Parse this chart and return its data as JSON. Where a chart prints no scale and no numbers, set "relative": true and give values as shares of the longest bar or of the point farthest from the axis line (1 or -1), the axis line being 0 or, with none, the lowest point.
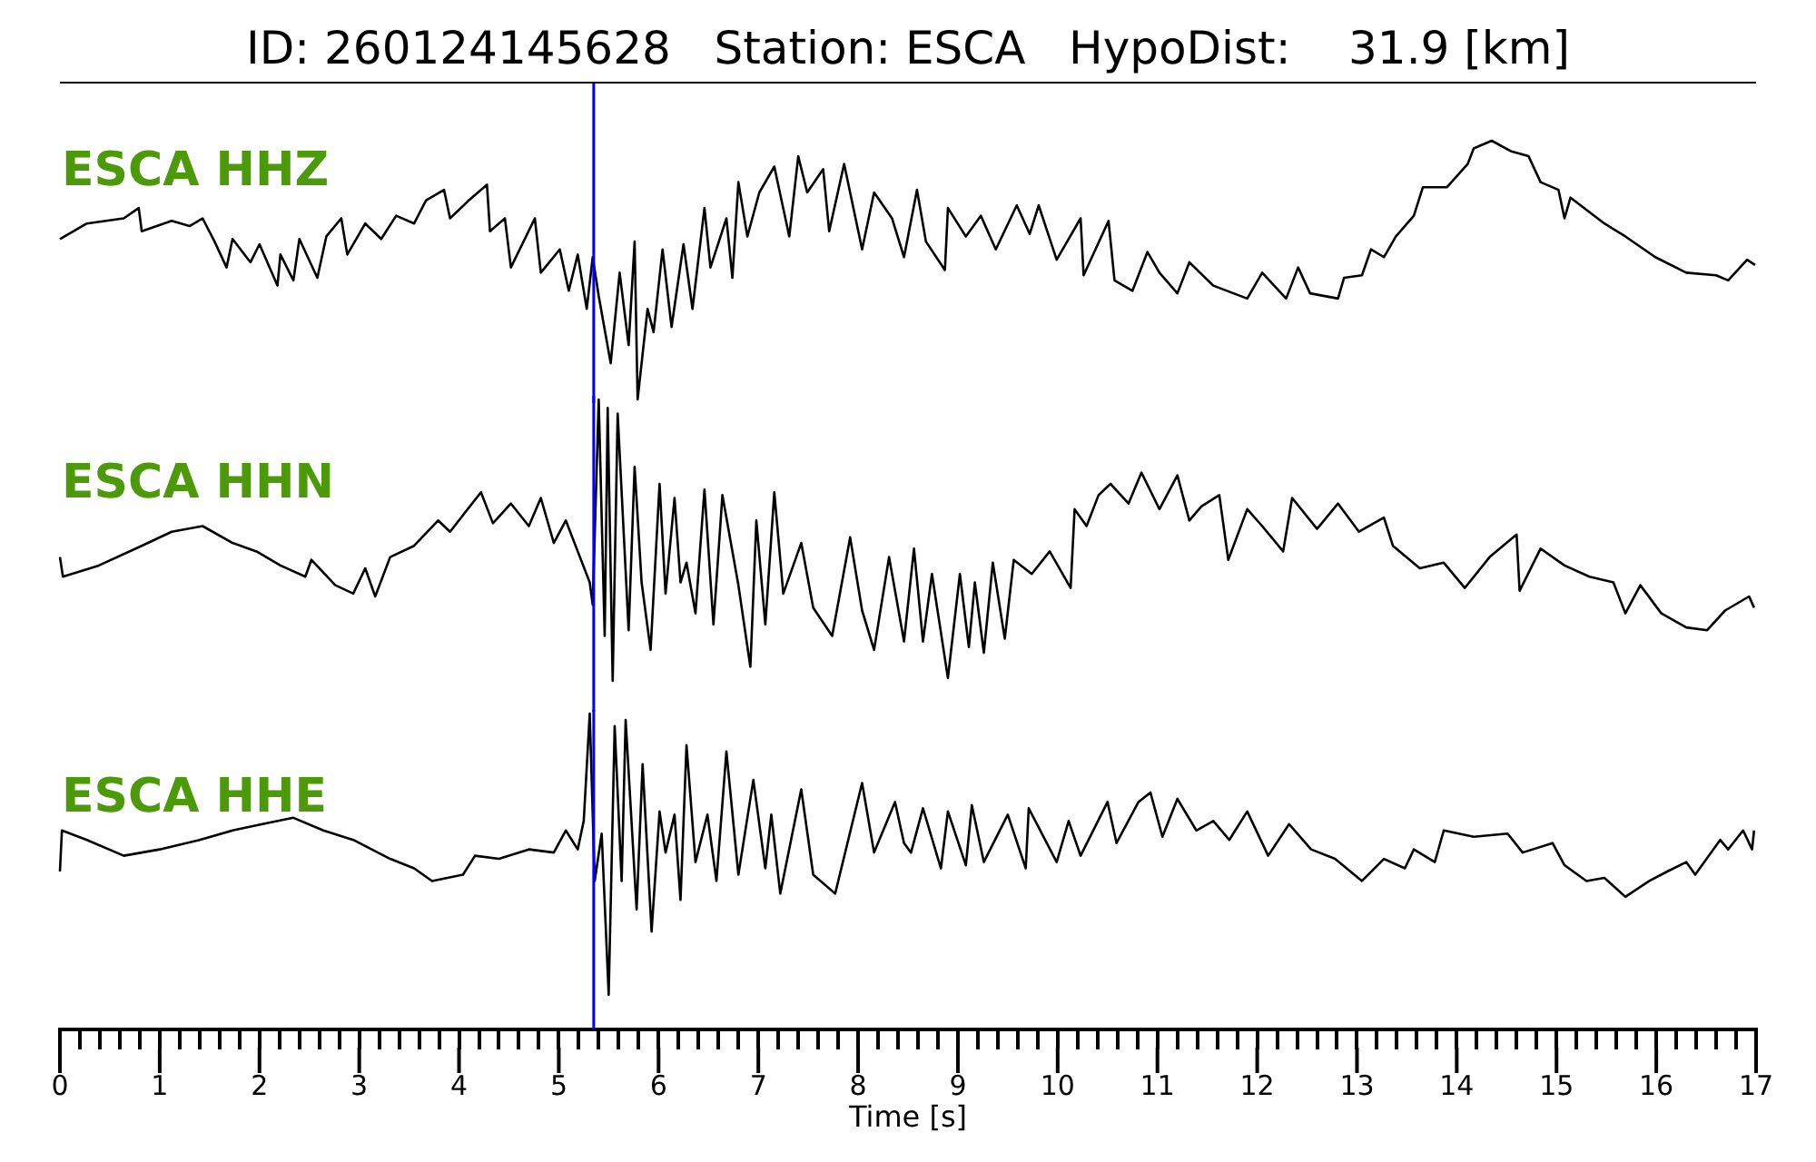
{
  "chart_data": [
    {
      "type": "line",
      "title": "ID: 260124145628   Station: ESCA   HypoDist:    31.9 [km]",
      "relative": true,
      "tick_labels": false,
      "xlim": [
        0,
        17
      ],
      "ref_lines": [
        {
          "axis": "x",
          "value": 5.35,
          "color": "#0000ff"
        }
      ],
      "x": [
        0,
        0.27,
        0.64,
        0.79,
        0.82,
        1.12,
        1.3,
        1.43,
        1.55,
        1.67,
        1.73,
        1.91,
        2.0,
        2.18,
        2.21,
        2.34,
        2.4,
        2.58,
        2.67,
        2.82,
        2.88,
        3.06,
        3.22,
        3.37,
        3.55,
        3.67,
        3.85,
        3.91,
        4.1,
        4.28,
        4.31,
        4.46,
        4.52,
        4.76,
        4.82,
        5.01,
        5.1,
        5.19,
        5.28,
        5.34,
        5.4,
        5.52,
        5.61,
        5.7,
        5.76,
        5.79,
        5.89,
        5.95,
        6.04,
        6.13,
        6.25,
        6.34,
        6.46,
        6.52,
        6.68,
        6.74,
        6.8,
        6.89,
        7.01,
        7.16,
        7.31,
        7.4,
        7.49,
        7.65,
        7.71,
        7.86,
        8.04,
        8.16,
        8.34,
        8.46,
        8.59,
        8.68,
        8.87,
        8.9,
        9.08,
        9.23,
        9.38,
        9.59,
        9.72,
        9.81,
        9.99,
        10.23,
        10.26,
        10.51,
        10.57,
        10.75,
        10.9,
        11.02,
        11.2,
        11.32,
        11.56,
        11.9,
        12.05,
        12.29,
        12.41,
        12.53,
        12.81,
        12.87,
        13.05,
        13.14,
        13.27,
        13.39,
        13.57,
        13.66,
        13.9,
        14.11,
        14.17,
        14.35,
        14.54,
        14.72,
        14.84,
        15.02,
        15.08,
        15.14,
        15.48,
        15.69,
        15.99,
        16.3,
        16.6,
        16.72,
        16.91,
        16.99
      ],
      "series": [
        {
          "name": "ESCA HHZ",
          "color": "#000000",
          "values": [
            0.62,
            0.68,
            0.7,
            0.74,
            0.65,
            0.69,
            0.67,
            0.7,
            0.61,
            0.51,
            0.62,
            0.53,
            0.6,
            0.44,
            0.56,
            0.46,
            0.62,
            0.47,
            0.63,
            0.7,
            0.56,
            0.68,
            0.62,
            0.71,
            0.68,
            0.77,
            0.81,
            0.7,
            0.77,
            0.83,
            0.65,
            0.7,
            0.51,
            0.7,
            0.49,
            0.58,
            0.42,
            0.56,
            0.35,
            0.55,
            0.4,
            0.14,
            0.49,
            0.21,
            0.61,
            0,
            0.35,
            0.26,
            0.58,
            0.28,
            0.6,
            0.35,
            0.74,
            0.51,
            0.7,
            0.47,
            0.84,
            0.63,
            0.8,
            0.9,
            0.63,
            0.94,
            0.8,
            0.89,
            0.65,
            0.91,
            0.58,
            0.8,
            0.7,
            0.55,
            0.81,
            0.61,
            0.5,
            0.74,
            0.63,
            0.71,
            0.58,
            0.75,
            0.64,
            0.75,
            0.54,
            0.7,
            0.48,
            0.69,
            0.46,
            0.42,
            0.57,
            0.49,
            0.41,
            0.53,
            0.44,
            0.39,
            0.49,
            0.39,
            0.51,
            0.41,
            0.39,
            0.47,
            0.48,
            0.58,
            0.55,
            0.63,
            0.71,
            0.82,
            0.82,
            0.91,
            0.97,
            1,
            0.96,
            0.94,
            0.84,
            0.81,
            0.7,
            0.78,
            0.68,
            0.63,
            0.55,
            0.49,
            0.48,
            0.46,
            0.54,
            0.52
          ]
        }
      ]
    },
    {
      "type": "line",
      "relative": true,
      "tick_labels": false,
      "xlim": [
        0,
        17
      ],
      "ref_lines": [
        {
          "axis": "x",
          "value": 5.35,
          "color": "#0000ff"
        }
      ],
      "x": [
        0,
        0.03,
        0.39,
        0.82,
        1.12,
        1.43,
        1.73,
        1.97,
        2.21,
        2.46,
        2.52,
        2.76,
        2.94,
        3.06,
        3.16,
        3.31,
        3.55,
        3.79,
        3.91,
        4.22,
        4.34,
        4.52,
        4.7,
        4.82,
        4.95,
        5.07,
        5.19,
        5.31,
        5.34,
        5.4,
        5.46,
        5.49,
        5.54,
        5.59,
        5.7,
        5.76,
        5.83,
        5.92,
        6.01,
        6.07,
        6.16,
        6.22,
        6.28,
        6.37,
        6.46,
        6.55,
        6.64,
        6.8,
        6.92,
        6.98,
        7.07,
        7.16,
        7.25,
        7.43,
        7.55,
        7.74,
        7.92,
        8.04,
        8.16,
        8.31,
        8.46,
        8.56,
        8.65,
        8.74,
        8.9,
        9.02,
        9.11,
        9.17,
        9.26,
        9.35,
        9.47,
        9.56,
        9.74,
        9.92,
        10.13,
        10.17,
        10.29,
        10.41,
        10.53,
        10.71,
        10.84,
        11.02,
        11.2,
        11.32,
        11.44,
        11.62,
        11.71,
        11.9,
        12.05,
        12.26,
        12.35,
        12.6,
        12.81,
        13.02,
        13.27,
        13.36,
        13.63,
        13.87,
        14.08,
        14.33,
        14.6,
        14.63,
        14.84,
        15.08,
        15.33,
        15.57,
        15.69,
        15.84,
        16.05,
        16.3,
        16.51,
        16.69,
        16.93,
        16.98
      ],
      "series": [
        {
          "name": "ESCA HHN",
          "color": "#000000",
          "values": [
            0.44,
            0.37,
            0.41,
            0.48,
            0.53,
            0.55,
            0.49,
            0.46,
            0.41,
            0.37,
            0.43,
            0.34,
            0.31,
            0.4,
            0.3,
            0.44,
            0.48,
            0.57,
            0.53,
            0.67,
            0.56,
            0.63,
            0.55,
            0.65,
            0.49,
            0.57,
            0.46,
            0.35,
            0.27,
            1,
            0.16,
            0.97,
            0,
            0.95,
            0.18,
            0.76,
            0.35,
            0.11,
            0.7,
            0.31,
            0.65,
            0.35,
            0.42,
            0.24,
            0.68,
            0.2,
            0.66,
            0.34,
            0.05,
            0.57,
            0.2,
            0.67,
            0.31,
            0.49,
            0.26,
            0.16,
            0.51,
            0.25,
            0.11,
            0.44,
            0.14,
            0.47,
            0.14,
            0.38,
            0.01,
            0.38,
            0.12,
            0.35,
            0.1,
            0.42,
            0.15,
            0.43,
            0.38,
            0.46,
            0.33,
            0.61,
            0.55,
            0.66,
            0.7,
            0.63,
            0.74,
            0.61,
            0.73,
            0.57,
            0.62,
            0.66,
            0.43,
            0.61,
            0.55,
            0.46,
            0.65,
            0.54,
            0.63,
            0.53,
            0.58,
            0.48,
            0.4,
            0.42,
            0.33,
            0.44,
            0.52,
            0.32,
            0.47,
            0.41,
            0.37,
            0.35,
            0.24,
            0.34,
            0.24,
            0.19,
            0.18,
            0.25,
            0.3,
            0.26
          ]
        }
      ]
    },
    {
      "type": "line",
      "relative": true,
      "tick_labels": "x",
      "xlim": [
        0,
        17
      ],
      "xlabel": "Time [s]",
      "xticks": [
        0,
        {
          "value": 0.2,
          "label": null
        },
        {
          "value": 0.4,
          "label": null
        },
        {
          "value": 0.6,
          "label": null
        },
        {
          "value": 0.8,
          "label": null
        },
        1,
        {
          "value": 1.2,
          "label": null
        },
        {
          "value": 1.4,
          "label": null
        },
        {
          "value": 1.6,
          "label": null
        },
        {
          "value": 1.8,
          "label": null
        },
        2,
        {
          "value": 2.2,
          "label": null
        },
        {
          "value": 2.4,
          "label": null
        },
        {
          "value": 2.6,
          "label": null
        },
        {
          "value": 2.8,
          "label": null
        },
        3,
        {
          "value": 3.2,
          "label": null
        },
        {
          "value": 3.4,
          "label": null
        },
        {
          "value": 3.6,
          "label": null
        },
        {
          "value": 3.8,
          "label": null
        },
        4,
        {
          "value": 4.2,
          "label": null
        },
        {
          "value": 4.4,
          "label": null
        },
        {
          "value": 4.6,
          "label": null
        },
        {
          "value": 4.8,
          "label": null
        },
        5,
        {
          "value": 5.2,
          "label": null
        },
        {
          "value": 5.4,
          "label": null
        },
        {
          "value": 5.6,
          "label": null
        },
        {
          "value": 5.8,
          "label": null
        },
        6,
        {
          "value": 6.2,
          "label": null
        },
        {
          "value": 6.4,
          "label": null
        },
        {
          "value": 6.6,
          "label": null
        },
        {
          "value": 6.8,
          "label": null
        },
        7,
        {
          "value": 7.2,
          "label": null
        },
        {
          "value": 7.4,
          "label": null
        },
        {
          "value": 7.6,
          "label": null
        },
        {
          "value": 7.8,
          "label": null
        },
        8,
        {
          "value": 8.2,
          "label": null
        },
        {
          "value": 8.4,
          "label": null
        },
        {
          "value": 8.6,
          "label": null
        },
        {
          "value": 8.8,
          "label": null
        },
        9,
        {
          "value": 9.2,
          "label": null
        },
        {
          "value": 9.4,
          "label": null
        },
        {
          "value": 9.6,
          "label": null
        },
        {
          "value": 9.8,
          "label": null
        },
        10,
        {
          "value": 10.2,
          "label": null
        },
        {
          "value": 10.4,
          "label": null
        },
        {
          "value": 10.6,
          "label": null
        },
        {
          "value": 10.8,
          "label": null
        },
        11,
        {
          "value": 11.2,
          "label": null
        },
        {
          "value": 11.4,
          "label": null
        },
        {
          "value": 11.6,
          "label": null
        },
        {
          "value": 11.8,
          "label": null
        },
        12,
        {
          "value": 12.2,
          "label": null
        },
        {
          "value": 12.4,
          "label": null
        },
        {
          "value": 12.6,
          "label": null
        },
        {
          "value": 12.8,
          "label": null
        },
        13,
        {
          "value": 13.2,
          "label": null
        },
        {
          "value": 13.4,
          "label": null
        },
        {
          "value": 13.6,
          "label": null
        },
        {
          "value": 13.8,
          "label": null
        },
        14,
        {
          "value": 14.2,
          "label": null
        },
        {
          "value": 14.4,
          "label": null
        },
        {
          "value": 14.6,
          "label": null
        },
        {
          "value": 14.8,
          "label": null
        },
        15,
        {
          "value": 15.2,
          "label": null
        },
        {
          "value": 15.4,
          "label": null
        },
        {
          "value": 15.6,
          "label": null
        },
        {
          "value": 15.8,
          "label": null
        },
        16,
        {
          "value": 16.2,
          "label": null
        },
        {
          "value": 16.4,
          "label": null
        },
        {
          "value": 16.6,
          "label": null
        },
        {
          "value": 16.8,
          "label": null
        },
        17
      ],
      "ref_lines": [
        {
          "axis": "x",
          "value": 5.35,
          "color": "#0000ff"
        }
      ],
      "x": [
        0,
        0.02,
        0.27,
        0.64,
        1.0,
        1.4,
        1.73,
        2.03,
        2.34,
        2.64,
        2.94,
        3.31,
        3.55,
        3.73,
        4.04,
        4.16,
        4.4,
        4.7,
        4.95,
        5.07,
        5.19,
        5.25,
        5.31,
        5.36,
        5.43,
        5.5,
        5.56,
        5.63,
        5.67,
        5.78,
        5.84,
        5.93,
        6.01,
        6.07,
        6.16,
        6.22,
        6.28,
        6.37,
        6.49,
        6.58,
        6.68,
        6.8,
        6.95,
        7.07,
        7.13,
        7.22,
        7.43,
        7.55,
        7.77,
        8.04,
        8.16,
        8.37,
        8.46,
        8.53,
        8.65,
        8.83,
        8.9,
        9.08,
        9.14,
        9.26,
        9.5,
        9.68,
        9.71,
        9.99,
        10.11,
        10.23,
        10.5,
        10.59,
        10.81,
        10.93,
        11.05,
        11.2,
        11.39,
        11.56,
        11.72,
        11.9,
        12.11,
        12.32,
        12.54,
        12.78,
        13.05,
        13.27,
        13.48,
        13.57,
        13.78,
        13.87,
        14.17,
        14.51,
        14.66,
        14.96,
        15.08,
        15.3,
        15.48,
        15.69,
        15.93,
        16.11,
        16.3,
        16.39,
        16.64,
        16.72,
        16.87,
        16.96,
        16.98
      ],
      "series": [
        {
          "name": "ESCA HHE",
          "color": "#000000",
          "values": [
            0.5,
            0.63,
            0.6,
            0.55,
            0.57,
            0.6,
            0.63,
            0.65,
            0.67,
            0.63,
            0.6,
            0.54,
            0.51,
            0.47,
            0.49,
            0.55,
            0.54,
            0.57,
            0.56,
            0.63,
            0.57,
            0.66,
            1,
            0.47,
            0.62,
            0.11,
            0.96,
            0.47,
            0.98,
            0.38,
            0.84,
            0.31,
            0.69,
            0.56,
            0.68,
            0.41,
            0.9,
            0.53,
            0.68,
            0.47,
            0.88,
            0.49,
            0.79,
            0.51,
            0.68,
            0.43,
            0.76,
            0.49,
            0.43,
            0.78,
            0.56,
            0.72,
            0.59,
            0.56,
            0.7,
            0.51,
            0.69,
            0.52,
            0.71,
            0.53,
            0.68,
            0.51,
            0.7,
            0.53,
            0.66,
            0.55,
            0.72,
            0.59,
            0.72,
            0.75,
            0.61,
            0.73,
            0.63,
            0.66,
            0.6,
            0.69,
            0.55,
            0.65,
            0.57,
            0.54,
            0.47,
            0.54,
            0.51,
            0.57,
            0.53,
            0.63,
            0.61,
            0.62,
            0.56,
            0.59,
            0.52,
            0.47,
            0.48,
            0.42,
            0.47,
            0.5,
            0.53,
            0.49,
            0.6,
            0.57,
            0.63,
            0.57,
            0.63
          ]
        }
      ]
    }
  ]
}
